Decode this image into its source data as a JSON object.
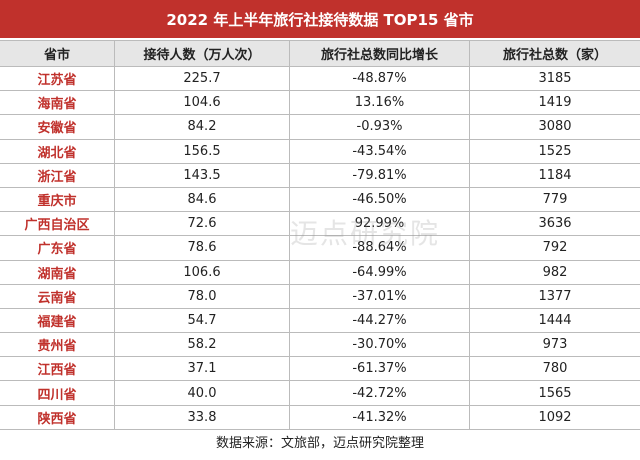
{
  "header": {
    "title": "2022 年上半年旅行社接待数据 TOP15 省市"
  },
  "table": {
    "columns": [
      "省市",
      "接待人数（万人次）",
      "旅行社总数同比增长",
      "旅行社总数（家）"
    ],
    "rows": [
      [
        "江苏省",
        "225.7",
        "-48.87%",
        "3185"
      ],
      [
        "海南省",
        "104.6",
        "13.16%",
        "1419"
      ],
      [
        "安徽省",
        "84.2",
        "-0.93%",
        "3080"
      ],
      [
        "湖北省",
        "156.5",
        "-43.54%",
        "1525"
      ],
      [
        "浙江省",
        "143.5",
        "-79.81%",
        "1184"
      ],
      [
        "重庆市",
        "84.6",
        "-46.50%",
        "779"
      ],
      [
        "广西自治区",
        "72.6",
        "92.99%",
        "3636"
      ],
      [
        "广东省",
        "78.6",
        "-88.64%",
        "792"
      ],
      [
        "湖南省",
        "106.6",
        "-64.99%",
        "982"
      ],
      [
        "云南省",
        "78.0",
        "-37.01%",
        "1377"
      ],
      [
        "福建省",
        "54.7",
        "-44.27%",
        "1444"
      ],
      [
        "贵州省",
        "58.2",
        "-30.70%",
        "973"
      ],
      [
        "江西省",
        "37.1",
        "-61.37%",
        "780"
      ],
      [
        "四川省",
        "40.0",
        "-42.72%",
        "1565"
      ],
      [
        "陕西省",
        "33.8",
        "-41.32%",
        "1092"
      ]
    ]
  },
  "watermark": "迈点研究院",
  "footer": {
    "source": "数据来源：文旅部，迈点研究院整理"
  }
}
